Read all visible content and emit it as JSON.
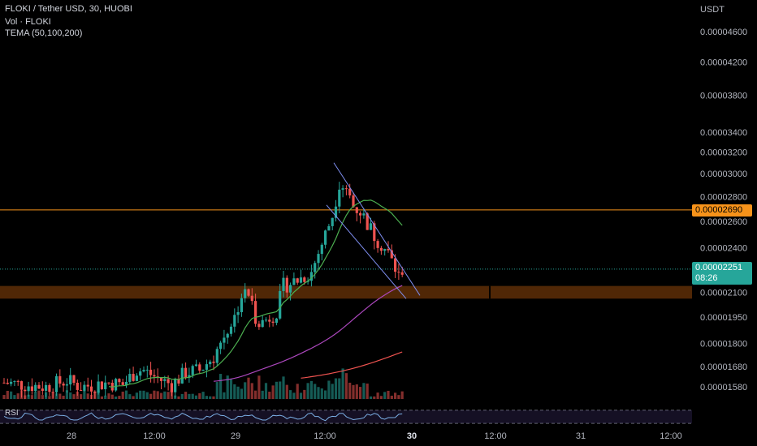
{
  "header": {
    "symbol_title": "FLOKI / Tether USD, 30, HUOBI",
    "volume_label": "Vol · FLOKI",
    "tema_label": "TEMA (50,100,200)"
  },
  "price_axis": {
    "currency": "USDT",
    "current_price_label": "0.00002251",
    "countdown_label": "08:26",
    "alert_price_label": "0.00002690",
    "current_price_color": "#26a69a",
    "alert_color": "#f7931a"
  },
  "rsi_label": "RSI",
  "colors": {
    "up": "#26a69a",
    "down": "#ef5350",
    "tema_fast": "#4caf50",
    "tema_mid": "#ab47bc",
    "tema_slow": "#ef5350",
    "channel": "#7e8ef0",
    "zone": "#6b3408",
    "rsi": "#7cb0e6"
  },
  "chart_data": {
    "type": "candlestick",
    "title": "FLOKI / Tether USD, 30, HUOBI",
    "y_axis_ticks": [
      "0.00004600",
      "0.00004200",
      "0.00003800",
      "0.00003400",
      "0.00003200",
      "0.00003000",
      "0.00002800",
      "0.00002600",
      "0.00002400",
      "0.00002100",
      "0.00001950",
      "0.00001800",
      "0.00001680",
      "0.00001580"
    ],
    "y_scale": "log",
    "x_axis_ticks": [
      "28",
      "12:00",
      "29",
      "12:00",
      "30",
      "12:00",
      "31",
      "12:00"
    ],
    "x_axis_bold": "30",
    "current_price": 2.251e-05,
    "horizontal_line": 2.69e-05,
    "support_zone": [
      2.06e-05,
      2.14e-05
    ],
    "trend_channel": {
      "upper": {
        "from": [
          "29 12:00",
          3.1e-05
        ],
        "to": [
          "30 00:30",
          2.08e-05
        ]
      },
      "lower": {
        "from": [
          "29 12:00",
          2.73e-05
        ],
        "to": [
          "30 00:00",
          2.06e-05
        ]
      }
    },
    "indicators": [
      "Vol · FLOKI",
      "TEMA (50,100,200)",
      "RSI"
    ],
    "grid": false
  }
}
